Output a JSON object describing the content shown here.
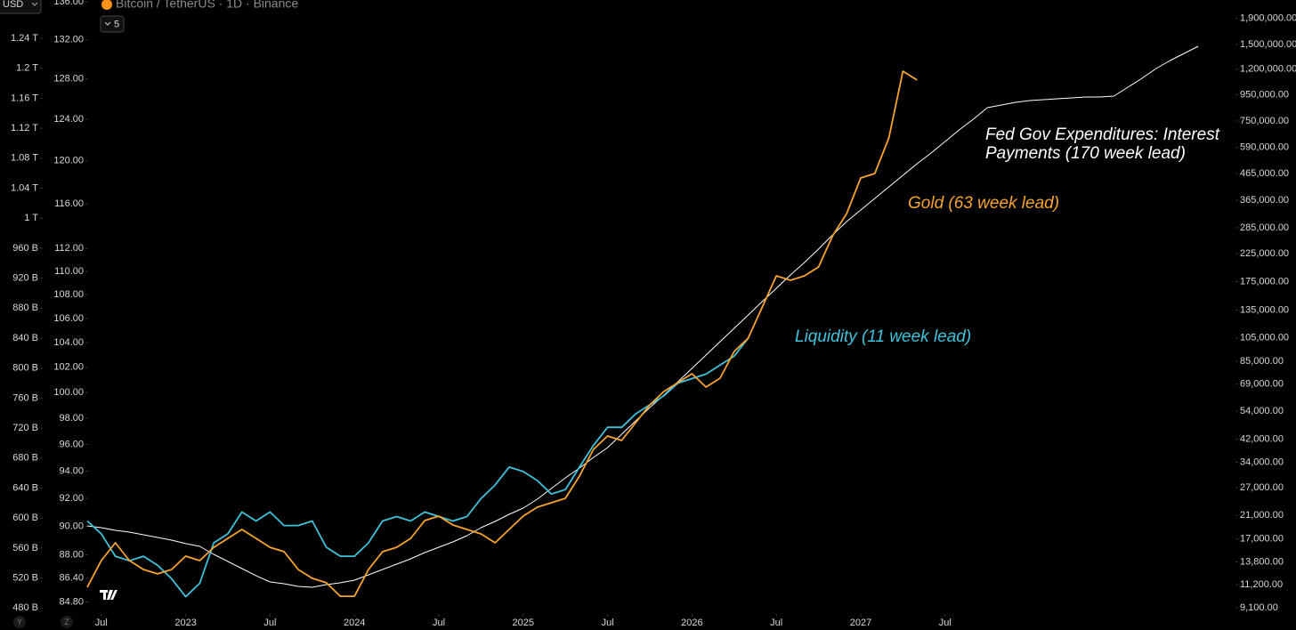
{
  "ui": {
    "currency": "USD",
    "symbol": "Bitcoin / TetherUS · 1D · Binance",
    "indicator_count": 5,
    "buttons": [
      "Y",
      "Z"
    ]
  },
  "chart_data": {
    "type": "line",
    "x": [
      "2022-06",
      "2022-07",
      "2022-08",
      "2022-09",
      "2022-10",
      "2022-11",
      "2022-12",
      "2023-01",
      "2023-02",
      "2023-03",
      "2023-04",
      "2023-05",
      "2023-06",
      "2023-07",
      "2023-08",
      "2023-09",
      "2023-10",
      "2023-11",
      "2023-12",
      "2024-01",
      "2024-02",
      "2024-03",
      "2024-04",
      "2024-05",
      "2024-06",
      "2024-07",
      "2024-08",
      "2024-09",
      "2024-10",
      "2024-11",
      "2024-12",
      "2025-01",
      "2025-02",
      "2025-03",
      "2025-04",
      "2025-05",
      "2025-06",
      "2025-07",
      "2025-08",
      "2025-09",
      "2025-10",
      "2025-11",
      "2025-12",
      "2026-01",
      "2026-02",
      "2026-03",
      "2026-04",
      "2026-05",
      "2026-06",
      "2026-07",
      "2026-08",
      "2026-09",
      "2026-10",
      "2026-11",
      "2026-12",
      "2027-01",
      "2027-02",
      "2027-03",
      "2027-04",
      "2027-05",
      "2027-06",
      "2027-07",
      "2027-08",
      "2027-09",
      "2027-10",
      "2027-11",
      "2027-12",
      "2028-01",
      "2028-02",
      "2028-03",
      "2028-04",
      "2028-05",
      "2028-06",
      "2028-07",
      "2028-08",
      "2028-09",
      "2028-10",
      "2028-11",
      "2028-12",
      "2029-01"
    ],
    "xticks": [
      {
        "value": "2022-07",
        "label": "Jul"
      },
      {
        "value": "2023-01",
        "label": "2023"
      },
      {
        "value": "2023-07",
        "label": "Jul"
      },
      {
        "value": "2024-01",
        "label": "2024"
      },
      {
        "value": "2024-07",
        "label": "Jul"
      },
      {
        "value": "2025-01",
        "label": "2025"
      },
      {
        "value": "2025-07",
        "label": "Jul"
      },
      {
        "value": "2026-01",
        "label": "2026"
      },
      {
        "value": "2026-07",
        "label": "Jul"
      },
      {
        "value": "2027-01",
        "label": "2027"
      },
      {
        "value": "2027-07",
        "label": "Jul"
      }
    ],
    "ylim": [
      472,
      1291
    ],
    "yticks": [
      {
        "value": 480,
        "label": "480 B"
      },
      {
        "value": 520,
        "label": "520 B"
      },
      {
        "value": 560,
        "label": "560 B"
      },
      {
        "value": 600,
        "label": "600 B"
      },
      {
        "value": 640,
        "label": "640 B"
      },
      {
        "value": 680,
        "label": "680 B"
      },
      {
        "value": 720,
        "label": "720 B"
      },
      {
        "value": 760,
        "label": "760 B"
      },
      {
        "value": 800,
        "label": "800 B"
      },
      {
        "value": 840,
        "label": "840 B"
      },
      {
        "value": 880,
        "label": "880 B"
      },
      {
        "value": 920,
        "label": "920 B"
      },
      {
        "value": 960,
        "label": "960 B"
      },
      {
        "value": 1000,
        "label": "1 T"
      },
      {
        "value": 1040,
        "label": "1.04 T"
      },
      {
        "value": 1080,
        "label": "1.08 T"
      },
      {
        "value": 1120,
        "label": "1.12 T"
      },
      {
        "value": 1160,
        "label": "1.16 T"
      },
      {
        "value": 1200,
        "label": "1.2 T"
      },
      {
        "value": 1240,
        "label": "1.24 T"
      }
    ],
    "y3lim": [
      84.0,
      136.2
    ],
    "y3log": true,
    "y3ticks": [
      {
        "value": 84.8,
        "label": "84.80"
      },
      {
        "value": 86.4,
        "label": "86.40"
      },
      {
        "value": 88,
        "label": "88.00"
      },
      {
        "value": 90,
        "label": "90.00"
      },
      {
        "value": 92,
        "label": "92.00"
      },
      {
        "value": 94,
        "label": "94.00"
      },
      {
        "value": 96,
        "label": "96.00"
      },
      {
        "value": 98,
        "label": "98.00"
      },
      {
        "value": 100,
        "label": "100.00"
      },
      {
        "value": 102,
        "label": "102.00"
      },
      {
        "value": 104,
        "label": "104.00"
      },
      {
        "value": 106,
        "label": "106.00"
      },
      {
        "value": 108,
        "label": "108.00"
      },
      {
        "value": 110,
        "label": "110.00"
      },
      {
        "value": 112,
        "label": "112.00"
      },
      {
        "value": 116,
        "label": "116.00"
      },
      {
        "value": 120,
        "label": "120.00"
      },
      {
        "value": 124,
        "label": "124.00"
      },
      {
        "value": 128,
        "label": "128.00"
      },
      {
        "value": 132,
        "label": "132.00"
      },
      {
        "value": 136,
        "label": "136.00"
      }
    ],
    "y2lim": [
      8600,
      2245000
    ],
    "y2log": true,
    "y2ticks": [
      {
        "value": 9100,
        "label": "9,100.00"
      },
      {
        "value": 11200,
        "label": "11,200.00"
      },
      {
        "value": 13800,
        "label": "13,800.00"
      },
      {
        "value": 17000,
        "label": "17,000.00"
      },
      {
        "value": 21000,
        "label": "21,000.00"
      },
      {
        "value": 27000,
        "label": "27,000.00"
      },
      {
        "value": 34000,
        "label": "34,000.00"
      },
      {
        "value": 42000,
        "label": "42,000.00"
      },
      {
        "value": 54000,
        "label": "54,000.00"
      },
      {
        "value": 69000,
        "label": "69,000.00"
      },
      {
        "value": 85000,
        "label": "85,000.00"
      },
      {
        "value": 105000,
        "label": "105,000.00"
      },
      {
        "value": 135000,
        "label": "135,000.00"
      },
      {
        "value": 175000,
        "label": "175,000.00"
      },
      {
        "value": 225000,
        "label": "225,000.00"
      },
      {
        "value": 285000,
        "label": "285,000.00"
      },
      {
        "value": 365000,
        "label": "365,000.00"
      },
      {
        "value": 465000,
        "label": "465,000.00"
      },
      {
        "value": 590000,
        "label": "590,000.00"
      },
      {
        "value": 750000,
        "label": "750,000.00"
      },
      {
        "value": 950000,
        "label": "950,000.00"
      },
      {
        "value": 1200000,
        "label": "1,200,000.00"
      },
      {
        "value": 1500000,
        "label": "1,500,000.00"
      },
      {
        "value": 1900000,
        "label": "1,900,000.00"
      }
    ],
    "series": [
      {
        "name": "Fed Gov Expenditures: Interest Payments (170 week lead)",
        "color": "#ffffff",
        "axis": "y2",
        "values": [
          19110,
          18810,
          18360,
          18060,
          17630,
          17210,
          16800,
          16270,
          15880,
          14760,
          13840,
          12980,
          12170,
          11500,
          11310,
          11040,
          10950,
          11220,
          11410,
          11680,
          12260,
          12870,
          13510,
          14180,
          15000,
          15750,
          16530,
          17490,
          18810,
          19900,
          21220,
          22460,
          24340,
          26810,
          29540,
          32280,
          35560,
          38860,
          43860,
          49500,
          55860,
          62540,
          70580,
          79660,
          89910,
          101500,
          114500,
          129200,
          145900,
          164600,
          185800,
          208000,
          234800,
          267100,
          301400,
          334700,
          371800,
          412800,
          458500,
          509200,
          560900,
          622900,
          691800,
          762100,
          846300,
          867000,
          888300,
          902700,
          910000,
          917400,
          924700,
          932200,
          932200,
          939800,
          1018700,
          1104200,
          1206800,
          1297800,
          1384100,
          1476400
        ]
      },
      {
        "name": "Liquidity (11 week lead)",
        "color": "#3ec3dc",
        "axis": "y",
        "values": [
          596,
          579,
          549,
          543,
          549,
          537,
          519,
          495,
          513,
          567,
          579,
          608,
          596,
          608,
          590,
          590,
          596,
          561,
          549,
          549,
          567,
          596,
          602,
          596,
          608,
          602,
          596,
          602,
          626,
          644,
          668,
          662,
          650,
          632,
          638,
          668,
          697,
          721,
          721,
          739,
          751,
          763,
          780,
          786,
          792,
          804,
          816,
          840,
          null,
          null,
          null,
          null,
          null,
          null,
          null,
          null,
          null,
          null,
          null,
          null,
          null,
          null,
          null,
          null,
          null,
          null,
          null,
          null,
          null,
          null,
          null,
          null,
          null,
          null,
          null,
          null,
          null,
          null,
          null,
          null
        ]
      },
      {
        "name": "Gold (63 week lead)",
        "color": "#f7a42c",
        "axis": "y2",
        "values": [
          10960,
          13950,
          16400,
          13950,
          12870,
          12370,
          12870,
          14530,
          13950,
          15740,
          17070,
          18500,
          17070,
          15740,
          15120,
          12870,
          11880,
          11410,
          10100,
          10100,
          12870,
          15120,
          15740,
          17070,
          20060,
          20880,
          19260,
          18500,
          17770,
          16400,
          18500,
          20880,
          22630,
          23560,
          24530,
          30020,
          38230,
          43150,
          41440,
          48690,
          57210,
          64570,
          70000,
          75890,
          67230,
          72890,
          92870,
          104800,
          139000,
          184300,
          177000,
          184300,
          199700,
          264900,
          324100,
          447500,
          465900,
          643100,
          1178000,
          1087000,
          null,
          null,
          null,
          null,
          null,
          null,
          null,
          null,
          null,
          null,
          null,
          null,
          null,
          null,
          null,
          null,
          null,
          null,
          null,
          null
        ]
      }
    ]
  }
}
